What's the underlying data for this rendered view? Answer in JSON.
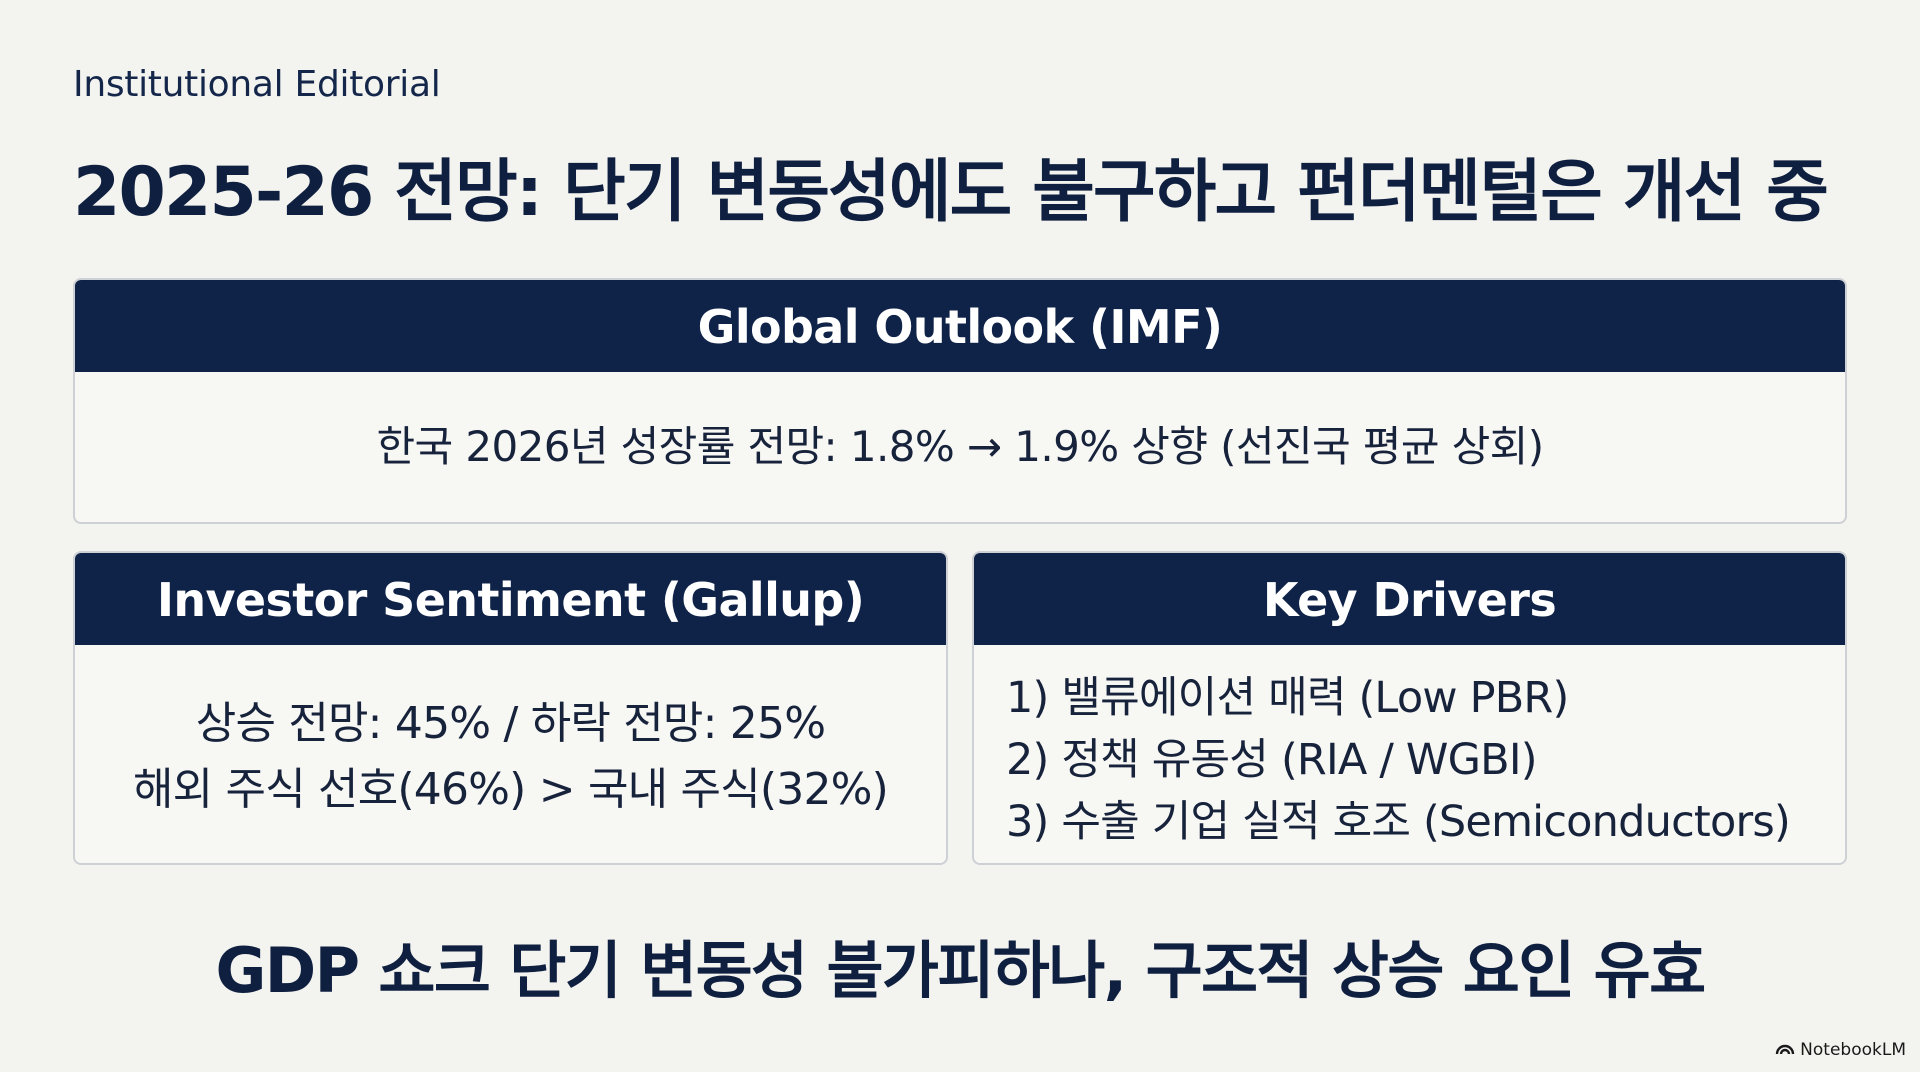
{
  "kicker": "Institutional Editorial",
  "title": "2025-26 전망: 단기 변동성에도 불구하고 펀더멘털은 개선 중",
  "global_outlook": {
    "heading": "Global Outlook (IMF)",
    "text": "한국 2026년 성장률 전망: 1.8% → 1.9% 상향 (선진국 평균 상회)"
  },
  "investor_sentiment": {
    "heading": "Investor Sentiment (Gallup)",
    "lines": [
      "상승 전망: 45% / 하락 전망: 25%",
      "해외 주식 선호(46%) > 국내 주식(32%)"
    ]
  },
  "key_drivers": {
    "heading": "Key Drivers",
    "items": [
      "1) 밸류에이션 매력 (Low PBR)",
      "2) 정책 유동성 (RIA / WGBI)",
      "3) 수출 기업 실적 호조 (Semiconductors)"
    ]
  },
  "conclusion": "GDP 쇼크 단기 변동성 불가피하나, 구조적 상승 요인 유효",
  "brand": {
    "icon": "notebooklm-icon",
    "label": "NotebookLM"
  }
}
